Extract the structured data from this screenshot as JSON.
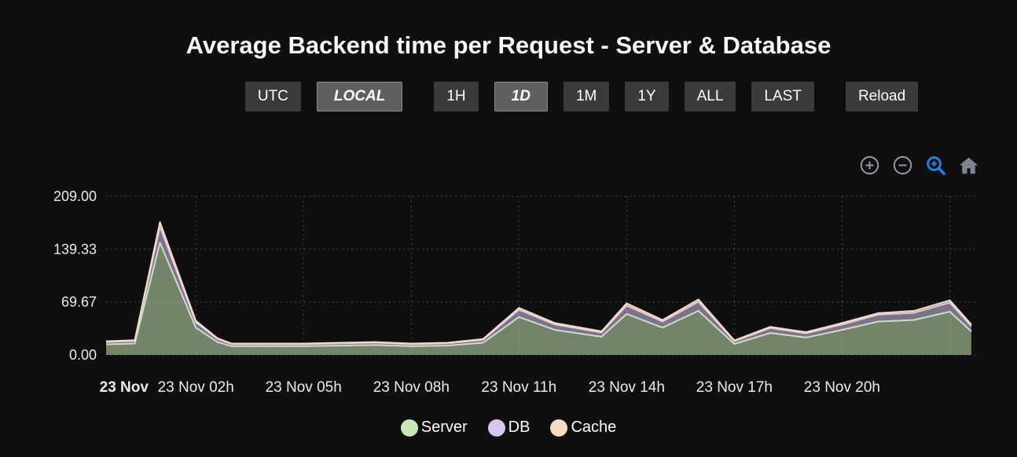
{
  "header": {
    "title": "Average Backend time per Request - Server & Database"
  },
  "toolbar": {
    "timezone_buttons": [
      {
        "label": "UTC",
        "active": false
      },
      {
        "label": "LOCAL",
        "active": true
      }
    ],
    "range_buttons": [
      {
        "label": "1H",
        "active": false
      },
      {
        "label": "1D",
        "active": true
      },
      {
        "label": "1M",
        "active": false
      },
      {
        "label": "1Y",
        "active": false
      },
      {
        "label": "ALL",
        "active": false
      },
      {
        "label": "LAST",
        "active": false
      }
    ],
    "reload_label": "Reload"
  },
  "zoom_controls": {
    "icons": [
      {
        "name": "zoom-in-icon",
        "color": "#8f98a8",
        "active": false
      },
      {
        "name": "zoom-out-icon",
        "color": "#8f98a8",
        "active": false
      },
      {
        "name": "zoom-select-icon",
        "color": "#2a7de2",
        "active": true
      },
      {
        "name": "home-icon",
        "color": "#7d8694",
        "active": false
      }
    ]
  },
  "chart_data": {
    "type": "area",
    "stacked": true,
    "title": "Average Backend time per Request - Server & Database",
    "x_unit": "hour of day, 23 Nov",
    "x_range": [
      -0.5,
      23.8
    ],
    "y_range": [
      0,
      209
    ],
    "grid": true,
    "legend_position": "bottom",
    "x": [
      -0.5,
      0.3,
      1,
      2,
      2.6,
      3,
      4,
      5,
      6,
      7,
      8,
      9,
      10,
      11,
      12,
      13.3,
      14,
      15,
      16,
      17,
      18,
      19,
      20,
      21,
      22,
      23,
      23.6
    ],
    "series": [
      {
        "name": "Server",
        "color": "#c8e6b8",
        "values": [
          14,
          15,
          148,
          36,
          17,
          11.5,
          11.5,
          11.5,
          12.3,
          13,
          11.5,
          12.3,
          16,
          50,
          33,
          24,
          54,
          36,
          58,
          14.5,
          29,
          23,
          33,
          44,
          46,
          57,
          31
        ]
      },
      {
        "name": "DB",
        "color": "#d8c6ef",
        "values": [
          3,
          3.5,
          21,
          7,
          4,
          2.8,
          2.8,
          2.8,
          3,
          3.2,
          2.8,
          3,
          4,
          9.5,
          7,
          5.5,
          11,
          8,
          12,
          3.5,
          6.5,
          5.5,
          7,
          9,
          9.5,
          12,
          7
        ]
      },
      {
        "name": "Cache",
        "color": "#f5dcc1",
        "values": [
          1,
          1,
          6,
          2,
          1,
          0.7,
          0.7,
          0.7,
          0.7,
          0.8,
          0.7,
          0.7,
          1,
          2.5,
          2,
          1.5,
          3,
          2,
          3,
          1,
          1.5,
          1.5,
          2,
          2,
          2.5,
          3,
          2
        ]
      }
    ],
    "y_ticks": [
      {
        "label": "209.00",
        "value": 209
      },
      {
        "label": "139.33",
        "value": 139.33
      },
      {
        "label": "69.67",
        "value": 69.67
      },
      {
        "label": "0.00",
        "value": 0
      }
    ],
    "x_ticks": [
      {
        "label": "23 Nov",
        "hour": 0,
        "bold": true
      },
      {
        "label": "23 Nov 02h",
        "hour": 2
      },
      {
        "label": "23 Nov 05h",
        "hour": 5
      },
      {
        "label": "23 Nov 08h",
        "hour": 8
      },
      {
        "label": "23 Nov 11h",
        "hour": 11
      },
      {
        "label": "23 Nov 14h",
        "hour": 14
      },
      {
        "label": "23 Nov 17h",
        "hour": 17
      },
      {
        "label": "23 Nov 20h",
        "hour": 20
      }
    ],
    "x_grid_hours": [
      2,
      5,
      8,
      11,
      14,
      17,
      20,
      23
    ]
  }
}
